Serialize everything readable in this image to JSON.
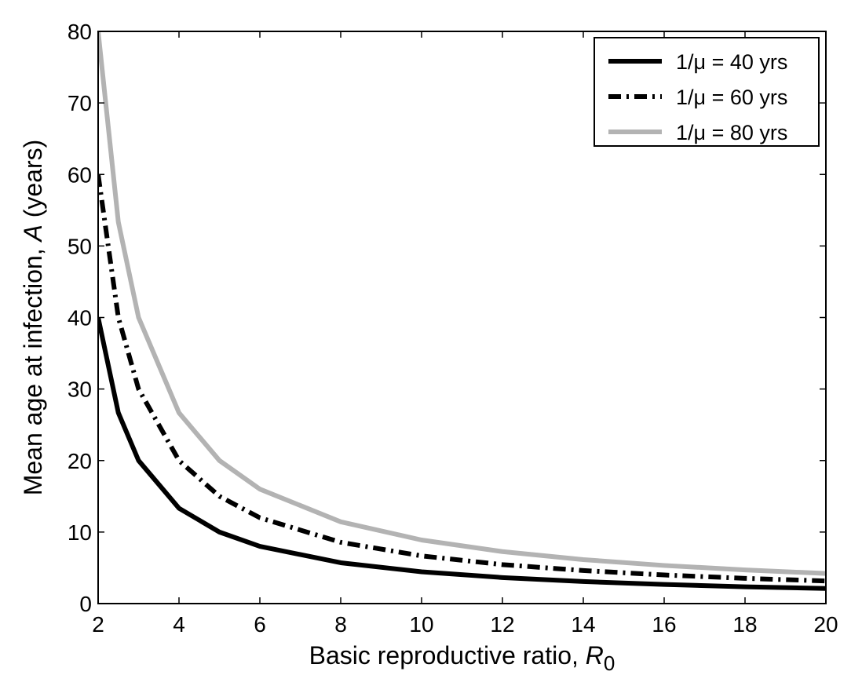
{
  "chart_data": {
    "type": "line",
    "xlabel": {
      "prefix": "Basic reproductive ratio, ",
      "symbol": "R",
      "subscript": "0"
    },
    "ylabel": {
      "prefix": "Mean age at infection, ",
      "symbol": "A",
      "suffix": " (years)"
    },
    "xlim": [
      2,
      20
    ],
    "ylim": [
      0,
      80
    ],
    "xticks": [
      2,
      4,
      6,
      8,
      10,
      12,
      14,
      16,
      18,
      20
    ],
    "yticks": [
      0,
      10,
      20,
      30,
      40,
      50,
      60,
      70,
      80
    ],
    "grid": false,
    "legend_position": "top-right",
    "series": [
      {
        "name": "1/μ = 40 yrs",
        "lifespan": 40,
        "color": "#000000",
        "style": "solid",
        "x": [
          2,
          2.5,
          3,
          4,
          5,
          6,
          8,
          10,
          12,
          14,
          16,
          18,
          20
        ],
        "y": [
          40,
          26.67,
          20,
          13.33,
          10,
          8,
          5.71,
          4.44,
          3.64,
          3.08,
          2.67,
          2.35,
          2.11
        ]
      },
      {
        "name": "1/μ = 60 yrs",
        "lifespan": 60,
        "color": "#000000",
        "style": "dashdot",
        "x": [
          2,
          2.5,
          3,
          4,
          5,
          6,
          8,
          10,
          12,
          14,
          16,
          18,
          20
        ],
        "y": [
          60,
          40,
          30,
          20,
          15,
          12,
          8.57,
          6.67,
          5.45,
          4.62,
          4,
          3.53,
          3.16
        ]
      },
      {
        "name": "1/μ = 80 yrs",
        "lifespan": 80,
        "color": "#b3b3b3",
        "style": "solid",
        "x": [
          2,
          2.5,
          3,
          4,
          5,
          6,
          8,
          10,
          12,
          14,
          16,
          18,
          20
        ],
        "y": [
          80,
          53.33,
          40,
          26.67,
          20,
          16,
          11.43,
          8.89,
          7.27,
          6.15,
          5.33,
          4.71,
          4.21
        ]
      }
    ]
  }
}
